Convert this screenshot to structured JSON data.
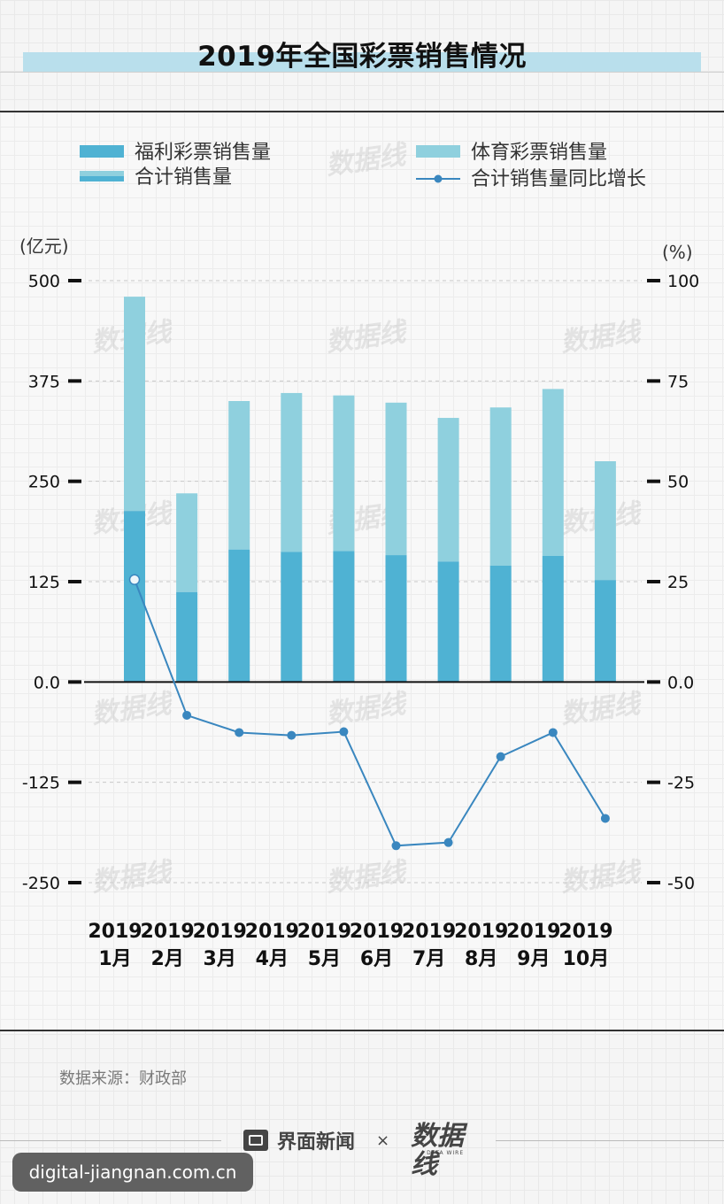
{
  "title": "2019年全国彩票销售情况",
  "source_text": "数据来源：财政部",
  "footer": {
    "brand": "界面新闻",
    "separator": "×",
    "partner_logo": "数据线",
    "partner_sub": "DATA WIRE"
  },
  "url_badge": "digital-jiangnan.com.cn",
  "watermark_text": "数据线",
  "colors": {
    "welfare": "#4fb2d3",
    "sports": "#8fd0de",
    "line": "#3a87bf",
    "total_legend": "#6cc2d9"
  },
  "chart_data": {
    "type": "bar",
    "title": "2019年全国彩票销售情况",
    "xlabel": "",
    "categories": [
      "2019\n1月",
      "2019\n2月",
      "2019\n3月",
      "2019\n4月",
      "2019\n5月",
      "2019\n6月",
      "2019\n7月",
      "2019\n8月",
      "2019\n9月",
      "2019\n10月"
    ],
    "category_lines": [
      [
        "2019",
        "1月"
      ],
      [
        "2019",
        "2月"
      ],
      [
        "2019",
        "3月"
      ],
      [
        "2019",
        "4月"
      ],
      [
        "2019",
        "5月"
      ],
      [
        "2019",
        "6月"
      ],
      [
        "2019",
        "7月"
      ],
      [
        "2019",
        "8月"
      ],
      [
        "2019",
        "9月"
      ],
      [
        "2019",
        "10月"
      ]
    ],
    "left_axis": {
      "unit": "(亿元)",
      "ylim": [
        -250,
        500
      ],
      "ticks": [
        500,
        375,
        250,
        125,
        0,
        -125,
        -250
      ],
      "tick_labels": [
        "500",
        "375",
        "250",
        "125",
        "0.0",
        "-125",
        "-250"
      ]
    },
    "right_axis": {
      "unit": "(%)",
      "ylim": [
        -50,
        100
      ],
      "ticks": [
        100,
        75,
        50,
        25,
        0,
        -25,
        -50
      ],
      "tick_labels": [
        "100",
        "75",
        "50",
        "25",
        "0.0",
        "-25",
        "-50"
      ]
    },
    "grid": "dashed-horizontal",
    "legend_position": "top",
    "legend": [
      {
        "name": "福利彩票销售量",
        "kind": "bar"
      },
      {
        "name": "体育彩票销售量",
        "kind": "bar"
      },
      {
        "name": "合计销售量",
        "kind": "bar"
      },
      {
        "name": "合计销售量同比增长",
        "kind": "line"
      }
    ],
    "series": [
      {
        "name": "福利彩票销售量",
        "type": "stacked-bar",
        "axis": "left",
        "values": [
          213,
          112,
          165,
          162,
          163,
          158,
          150,
          145,
          157,
          127
        ]
      },
      {
        "name": "体育彩票销售量",
        "type": "stacked-bar",
        "axis": "left",
        "values": [
          267,
          123,
          185,
          198,
          194,
          190,
          179,
          197,
          208,
          148
        ]
      },
      {
        "name": "合计销售量",
        "type": "total",
        "axis": "left",
        "values": [
          480,
          235,
          350,
          360,
          357,
          348,
          329,
          342,
          365,
          275
        ]
      },
      {
        "name": "合计销售量同比增长",
        "type": "line",
        "axis": "right",
        "values": [
          25.5,
          -8.3,
          -12.6,
          -13.3,
          -12.4,
          -40.8,
          -40.0,
          -18.6,
          -12.6,
          -34.0
        ]
      }
    ]
  }
}
